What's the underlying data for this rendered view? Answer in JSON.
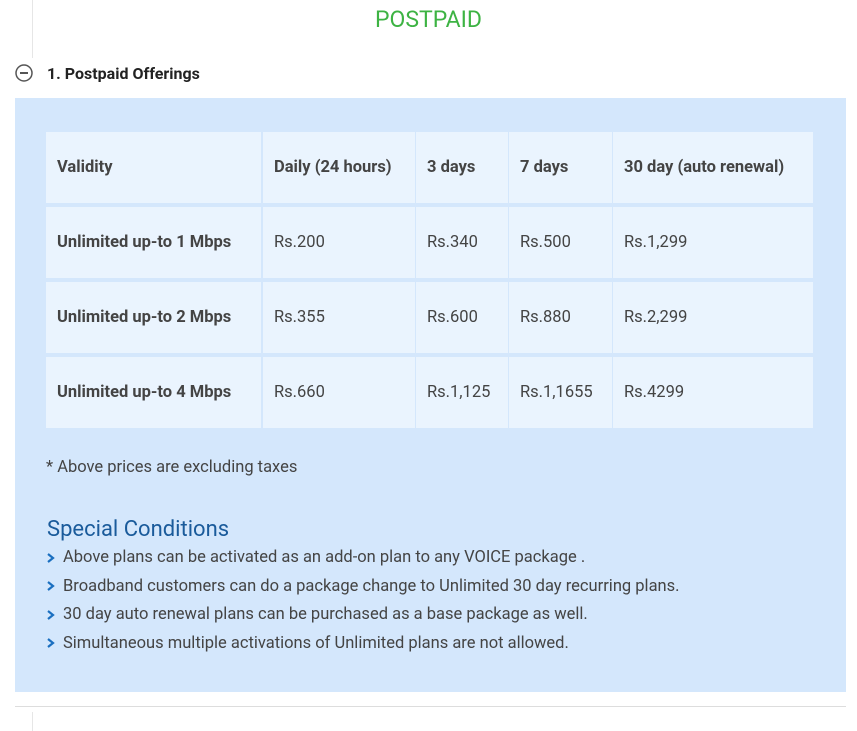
{
  "header": {
    "title": "POSTPAID"
  },
  "section": {
    "title": "1. Postpaid Offerings"
  },
  "table": {
    "header": [
      "Validity",
      "Daily (24 hours)",
      "3 days",
      "7 days",
      "30 day (auto renewal)"
    ],
    "rows": [
      [
        "Unlimited up-to 1 Mbps",
        "Rs.200",
        "Rs.340",
        "Rs.500",
        "Rs.1,299"
      ],
      [
        "Unlimited up-to 2 Mbps",
        "Rs.355",
        "Rs.600",
        "Rs.880",
        "Rs.2,299"
      ],
      [
        "Unlimited up-to 4 Mbps",
        "Rs.660",
        "Rs.1,125",
        "Rs.1,1655",
        "Rs.4299"
      ]
    ]
  },
  "note": "* Above prices are excluding taxes",
  "conditions": {
    "title": "Special Conditions",
    "items": [
      "Above plans can be activated as an add-on plan to any VOICE package .",
      "Broadband customers can do a package change to Unlimited 30 day recurring plans.",
      "30 day auto renewal plans can be purchased as a base package as well.",
      "Simultaneous multiple activations of Unlimited plans are not allowed."
    ]
  }
}
